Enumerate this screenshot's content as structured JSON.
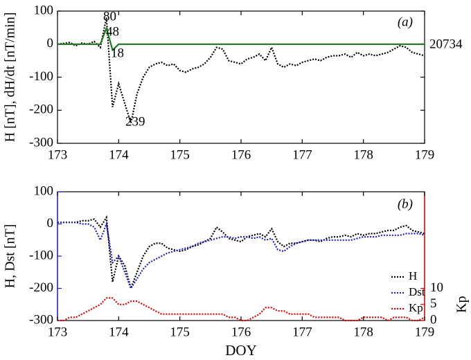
{
  "chart_data": [
    {
      "type": "line",
      "ylabel": "H [nT], dH/dt [nT/min]",
      "annotations": [
        "(a)",
        "80",
        "48",
        "18",
        "239",
        "20734"
      ],
      "xlim": [
        173,
        179
      ],
      "xticks": [
        173,
        174,
        175,
        176,
        177,
        178,
        179
      ],
      "ylim": [
        -300,
        100
      ],
      "yticks": [
        -300,
        -200,
        -100,
        0,
        100
      ],
      "x": [
        173,
        173.1,
        173.2,
        173.3,
        173.4,
        173.5,
        173.6,
        173.7,
        173.8,
        173.9,
        174,
        174.1,
        174.2,
        174.3,
        174.4,
        174.5,
        174.6,
        174.7,
        174.8,
        174.9,
        175,
        175.1,
        175.2,
        175.3,
        175.4,
        175.5,
        175.6,
        175.7,
        175.8,
        175.9,
        176,
        176.1,
        176.2,
        176.3,
        176.4,
        176.5,
        176.6,
        176.7,
        176.8,
        176.9,
        177,
        177.1,
        177.2,
        177.3,
        177.4,
        177.5,
        177.6,
        177.7,
        177.8,
        177.9,
        178,
        178.1,
        178.2,
        178.3,
        178.4,
        178.5,
        178.6,
        178.7,
        178.8,
        178.9,
        179
      ],
      "series": [
        {
          "color": "#000000",
          "values": [
            0,
            2,
            5,
            -5,
            3,
            0,
            8,
            -10,
            80,
            -190,
            -120,
            -180,
            -239,
            -150,
            -100,
            -70,
            -60,
            -55,
            -65,
            -60,
            -80,
            -85,
            -75,
            -70,
            -60,
            -40,
            -10,
            -15,
            -50,
            -55,
            -60,
            -45,
            -40,
            -30,
            -50,
            -10,
            -60,
            -70,
            -60,
            -65,
            -55,
            -50,
            -45,
            -50,
            -40,
            -35,
            -35,
            -30,
            -40,
            -25,
            -35,
            -30,
            -35,
            -30,
            -25,
            -15,
            -5,
            -10,
            -25,
            -30,
            -35
          ]
        },
        {
          "color": "#1a7a1a",
          "values": [
            0,
            0,
            0,
            0,
            0,
            0,
            0,
            0,
            48,
            -18,
            0,
            0,
            0,
            0,
            0,
            0,
            0,
            0,
            0,
            0,
            0,
            0,
            0,
            0,
            0,
            0,
            0,
            0,
            0,
            0,
            0,
            0,
            0,
            0,
            0,
            0,
            0,
            0,
            0,
            0,
            0,
            0,
            0,
            0,
            0,
            0,
            0,
            0,
            0,
            0,
            0,
            0,
            0,
            0,
            0,
            0,
            0,
            0,
            0,
            0,
            0
          ]
        }
      ]
    },
    {
      "type": "line",
      "ylabel": "H, Dst [nT]",
      "y2label": "Kp",
      "xlabel": "DOY",
      "annotations": [
        "(b)"
      ],
      "legend": "lower right",
      "xlim": [
        173,
        179
      ],
      "xticks": [
        173,
        174,
        175,
        176,
        177,
        178,
        179
      ],
      "ylim": [
        -300,
        100
      ],
      "yticks": [
        -300,
        -200,
        -100,
        0,
        100
      ],
      "y2lim": [
        0,
        40
      ],
      "y2ticks": [
        0,
        5,
        10
      ],
      "x": [
        173,
        173.1,
        173.2,
        173.3,
        173.4,
        173.5,
        173.6,
        173.7,
        173.8,
        173.9,
        174,
        174.1,
        174.2,
        174.3,
        174.4,
        174.5,
        174.6,
        174.7,
        174.8,
        174.9,
        175,
        175.1,
        175.2,
        175.3,
        175.4,
        175.5,
        175.6,
        175.7,
        175.8,
        175.9,
        176,
        176.1,
        176.2,
        176.3,
        176.4,
        176.5,
        176.6,
        176.7,
        176.8,
        176.9,
        177,
        177.1,
        177.2,
        177.3,
        177.4,
        177.5,
        177.6,
        177.7,
        177.8,
        177.9,
        178,
        178.1,
        178.2,
        178.3,
        178.4,
        178.5,
        178.6,
        178.7,
        178.8,
        178.9,
        179
      ],
      "series": [
        {
          "name": "H",
          "color": "#000000",
          "values": [
            5,
            5,
            5,
            5,
            10,
            10,
            15,
            -10,
            20,
            -180,
            -100,
            -130,
            -200,
            -150,
            -100,
            -70,
            -60,
            -60,
            -75,
            -80,
            -85,
            -80,
            -70,
            -65,
            -55,
            -45,
            -10,
            -25,
            -45,
            -50,
            -55,
            -40,
            -35,
            -30,
            -40,
            -15,
            -55,
            -70,
            -60,
            -60,
            -55,
            -50,
            -50,
            -55,
            -45,
            -40,
            -40,
            -35,
            -40,
            -30,
            -35,
            -30,
            -30,
            -25,
            -20,
            -20,
            -10,
            -5,
            -20,
            -25,
            -30
          ]
        },
        {
          "name": "Dst",
          "color": "#1f1fd0",
          "values": [
            5,
            5,
            5,
            5,
            0,
            0,
            -10,
            -50,
            0,
            -120,
            -100,
            -150,
            -200,
            -170,
            -140,
            -120,
            -110,
            -100,
            -90,
            -85,
            -80,
            -75,
            -70,
            -60,
            -55,
            -50,
            -45,
            -40,
            -40,
            -45,
            -40,
            -40,
            -45,
            -40,
            -50,
            -45,
            -80,
            -85,
            -70,
            -60,
            -55,
            -50,
            -50,
            -50,
            -50,
            -50,
            -50,
            -50,
            -50,
            -45,
            -40,
            -40,
            -40,
            -35,
            -35,
            -35,
            -35,
            -30,
            -30,
            -30,
            -35
          ]
        },
        {
          "name": "Kp",
          "color": "#e00000",
          "axis": "y2",
          "values": [
            0,
            0,
            1,
            1,
            2,
            3,
            4,
            5,
            7,
            7,
            5,
            5,
            6,
            6,
            5,
            4,
            3,
            2,
            2,
            2,
            2,
            2,
            2,
            2,
            2,
            2,
            2,
            2,
            1,
            1,
            0,
            0,
            1,
            2,
            4,
            4,
            3,
            3,
            2,
            2,
            2,
            2,
            1,
            1,
            1,
            1,
            1,
            0,
            0,
            0,
            1,
            1,
            1,
            1,
            0,
            1,
            1,
            1,
            0,
            0,
            1
          ]
        }
      ]
    }
  ]
}
